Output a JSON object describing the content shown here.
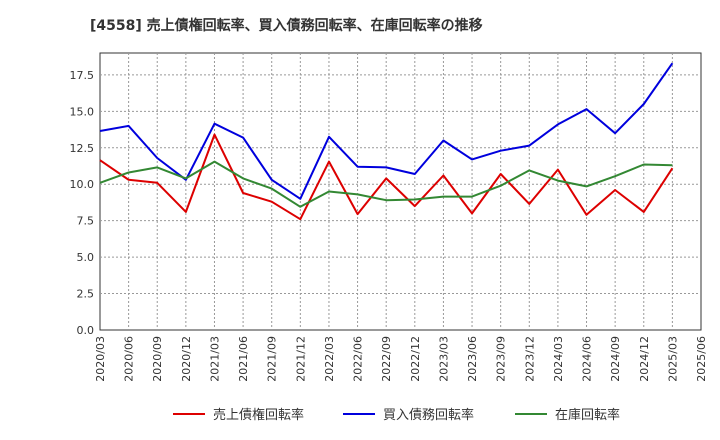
{
  "chart_data": {
    "type": "line",
    "title": "[4558]  売上債権回転率、買入債務回転率、在庫回転率の推移",
    "xlabel": "",
    "ylabel": "",
    "ylim": [
      0,
      19
    ],
    "yticks": [
      "0.0",
      "2.5",
      "5.0",
      "7.5",
      "10.0",
      "12.5",
      "15.0",
      "17.5"
    ],
    "ytick_values": [
      0,
      2.5,
      5,
      7.5,
      10,
      12.5,
      15,
      17.5
    ],
    "categories": [
      "2020/03",
      "2020/06",
      "2020/09",
      "2020/12",
      "2021/03",
      "2021/06",
      "2021/09",
      "2021/12",
      "2022/03",
      "2022/06",
      "2022/09",
      "2022/12",
      "2023/03",
      "2023/06",
      "2023/09",
      "2023/12",
      "2024/03",
      "2024/06",
      "2024/09",
      "2024/12",
      "2025/03",
      "2025/06"
    ],
    "grid": true,
    "legend_position": "bottom",
    "series": [
      {
        "name": "売上債権回転率",
        "color": "#dd0000",
        "values": [
          11.65,
          10.3,
          10.1,
          8.1,
          13.4,
          9.4,
          8.8,
          7.6,
          11.55,
          7.95,
          10.4,
          8.5,
          10.6,
          8.0,
          10.7,
          8.65,
          11.0,
          7.9,
          9.6,
          8.1,
          11.1,
          null
        ]
      },
      {
        "name": "買入債務回転率",
        "color": "#0000dd",
        "values": [
          13.65,
          14.0,
          11.8,
          10.3,
          14.15,
          13.2,
          10.3,
          9.0,
          13.25,
          11.2,
          11.15,
          10.7,
          13.0,
          11.7,
          12.3,
          12.65,
          14.1,
          15.15,
          13.5,
          15.5,
          18.3,
          null
        ]
      },
      {
        "name": "在庫回転率",
        "color": "#338833",
        "values": [
          10.1,
          10.8,
          11.15,
          10.4,
          11.55,
          10.4,
          9.7,
          8.45,
          9.5,
          9.3,
          8.9,
          8.95,
          9.15,
          9.15,
          9.9,
          10.95,
          10.25,
          9.85,
          10.55,
          11.35,
          11.3,
          null
        ]
      }
    ]
  }
}
